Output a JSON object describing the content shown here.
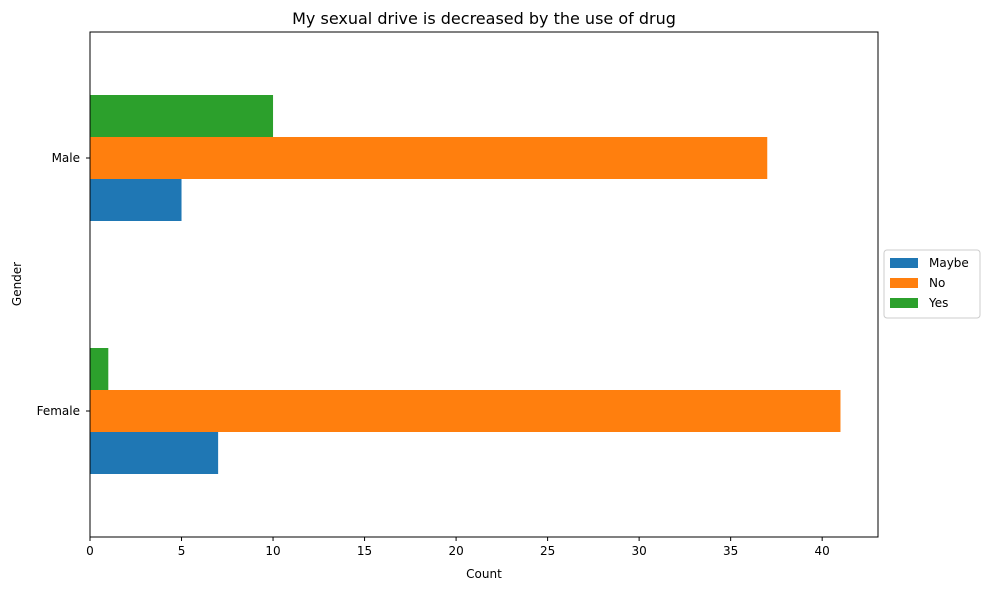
{
  "chart_data": {
    "type": "bar",
    "orientation": "horizontal",
    "title": "My sexual drive is decreased by the use of drug",
    "xlabel": "Count",
    "ylabel": "Gender",
    "categories": [
      "Female",
      "Male"
    ],
    "series": [
      {
        "name": "Maybe",
        "values": [
          7,
          5
        ],
        "color": "#1f77b4"
      },
      {
        "name": "No",
        "values": [
          41,
          37
        ],
        "color": "#ff7f0e"
      },
      {
        "name": "Yes",
        "values": [
          1,
          10
        ],
        "color": "#2ca02c"
      }
    ],
    "xlim": [
      0,
      43.05
    ],
    "xticks": [
      0,
      5,
      10,
      15,
      20,
      25,
      30,
      35,
      40
    ],
    "grid": false,
    "legend_position": "center-right, outside plot"
  }
}
